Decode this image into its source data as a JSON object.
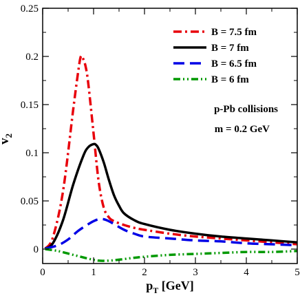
{
  "chart_data": {
    "type": "line",
    "title": "",
    "xlabel": "p",
    "xlabel_sub": "T",
    "xlabel_unit": " [GeV]",
    "ylabel": "v",
    "ylabel_sub": "2",
    "xlim": [
      0,
      5
    ],
    "ylim": [
      -0.015,
      0.25
    ],
    "x_ticks": [
      0,
      1,
      2,
      3,
      4,
      5
    ],
    "x_tick_labels": [
      "0",
      "1",
      "2",
      "3",
      "4",
      "5"
    ],
    "y_ticks": [
      0,
      0.05,
      0.1,
      0.15,
      0.2,
      0.25
    ],
    "y_tick_labels": [
      "0",
      "0.05",
      "0.1",
      "0.15",
      "0.2",
      "0.25"
    ],
    "grid": false,
    "legend_position": "top-right",
    "annotations": [
      "p-Pb collisions",
      "m = 0.2 GeV"
    ],
    "series": [
      {
        "name": "B = 7.5 fm",
        "color": "#e8000b",
        "dash": "dash-dot",
        "x": [
          0.05,
          0.2,
          0.4,
          0.6,
          0.7,
          0.75,
          0.8,
          0.85,
          0.9,
          1.0,
          1.1,
          1.2,
          1.3,
          1.4,
          1.6,
          1.8,
          2.0,
          2.5,
          3.0,
          3.5,
          4.0,
          4.5,
          5.0
        ],
        "y": [
          0.0005,
          0.012,
          0.06,
          0.145,
          0.185,
          0.2,
          0.197,
          0.188,
          0.17,
          0.12,
          0.07,
          0.043,
          0.033,
          0.029,
          0.025,
          0.022,
          0.02,
          0.016,
          0.013,
          0.011,
          0.009,
          0.007,
          0.005
        ]
      },
      {
        "name": "B = 7 fm",
        "color": "#000000",
        "dash": "solid",
        "x": [
          0.05,
          0.2,
          0.4,
          0.6,
          0.8,
          0.9,
          1.0,
          1.05,
          1.1,
          1.2,
          1.3,
          1.4,
          1.5,
          1.6,
          1.8,
          2.0,
          2.5,
          3.0,
          3.5,
          4.0,
          4.5,
          5.0
        ],
        "y": [
          0.0005,
          0.006,
          0.03,
          0.067,
          0.097,
          0.106,
          0.109,
          0.108,
          0.104,
          0.09,
          0.072,
          0.056,
          0.045,
          0.037,
          0.03,
          0.026,
          0.02,
          0.016,
          0.013,
          0.011,
          0.009,
          0.007
        ]
      },
      {
        "name": "B = 6.5 fm",
        "color": "#0000e6",
        "dash": "dash",
        "x": [
          0.05,
          0.3,
          0.5,
          0.7,
          0.9,
          1.0,
          1.1,
          1.2,
          1.3,
          1.4,
          1.6,
          1.8,
          2.0,
          2.5,
          3.0,
          3.5,
          4.0,
          4.5,
          5.0
        ],
        "y": [
          0.0005,
          0.004,
          0.01,
          0.019,
          0.026,
          0.029,
          0.031,
          0.031,
          0.029,
          0.026,
          0.02,
          0.016,
          0.013,
          0.011,
          0.009,
          0.008,
          0.006,
          0.005,
          0.004
        ]
      },
      {
        "name": "B = 6 fm",
        "color": "#009900",
        "dash": "dash-dot-dot",
        "x": [
          0.05,
          0.3,
          0.6,
          0.9,
          1.1,
          1.3,
          1.5,
          1.8,
          2.0,
          2.5,
          3.0,
          3.5,
          4.0,
          4.5,
          5.0
        ],
        "y": [
          0.0,
          -0.002,
          -0.006,
          -0.01,
          -0.012,
          -0.012,
          -0.011,
          -0.009,
          -0.008,
          -0.006,
          -0.005,
          -0.004,
          -0.003,
          -0.003,
          -0.002
        ]
      }
    ]
  }
}
